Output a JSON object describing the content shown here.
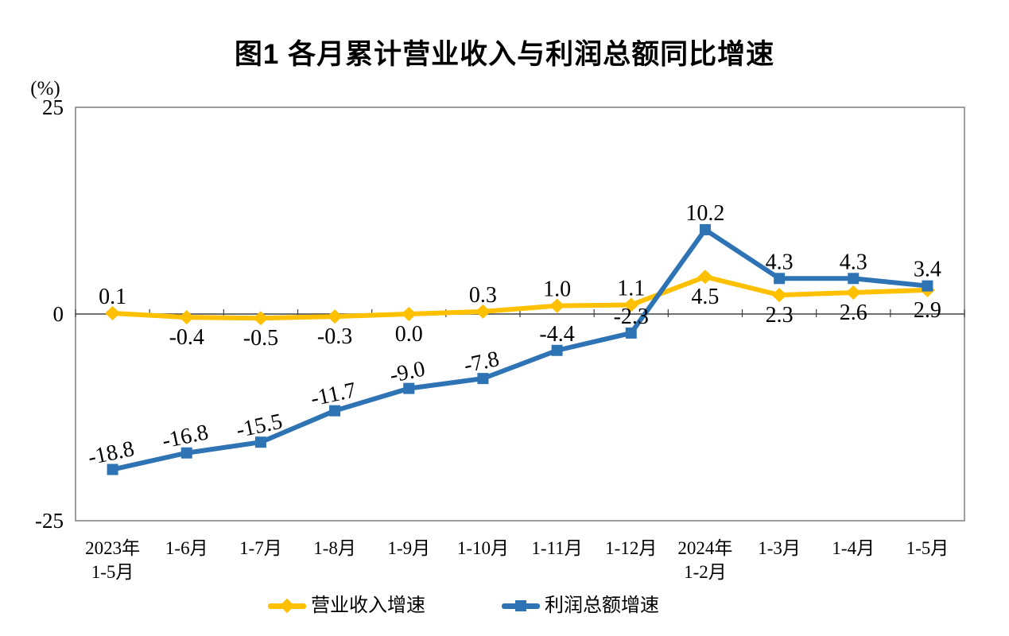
{
  "y_axis": {
    "unit_label": "(%)",
    "tick_values": [
      25,
      0,
      -25
    ],
    "tick_labels": [
      "25",
      "0",
      "-25"
    ]
  },
  "chart_data": {
    "type": "line",
    "title": "图1  各月累计营业收入与利润总额同比增速",
    "categories": [
      "2023年\n1-5月",
      "1-6月",
      "1-7月",
      "1-8月",
      "1-9月",
      "1-10月",
      "1-11月",
      "1-12月",
      "2024年\n1-2月",
      "1-3月",
      "1-4月",
      "1-5月"
    ],
    "series": [
      {
        "key": "revenue",
        "name": "营业收入增速",
        "color": "#FFC000",
        "marker": "diamond",
        "values": [
          0.1,
          -0.4,
          -0.5,
          -0.3,
          0.0,
          0.3,
          1.0,
          1.1,
          4.5,
          2.3,
          2.6,
          2.9
        ],
        "label_positions": [
          "above",
          "below",
          "below",
          "below",
          "below",
          "above",
          "above",
          "above",
          "below",
          "below",
          "below",
          "below"
        ],
        "label_angles": [
          0,
          0,
          0,
          0,
          0,
          0,
          0,
          0,
          0,
          0,
          0,
          0
        ]
      },
      {
        "key": "profit",
        "name": "利润总额增速",
        "color": "#2E74B5",
        "marker": "square",
        "values": [
          -18.8,
          -16.8,
          -15.5,
          -11.7,
          -9.0,
          -7.8,
          -4.4,
          -2.3,
          10.2,
          4.3,
          4.3,
          3.4
        ],
        "label_positions": [
          "above",
          "above",
          "above",
          "above",
          "above",
          "above",
          "above",
          "above",
          "above",
          "above",
          "above",
          "above"
        ],
        "label_angles": [
          -12,
          -12,
          -12,
          -12,
          -12,
          -12,
          0,
          0,
          0,
          0,
          0,
          0
        ]
      }
    ],
    "ylim": [
      -25,
      25
    ],
    "value_decimals": 1,
    "grid": false,
    "legend_position": "bottom"
  }
}
